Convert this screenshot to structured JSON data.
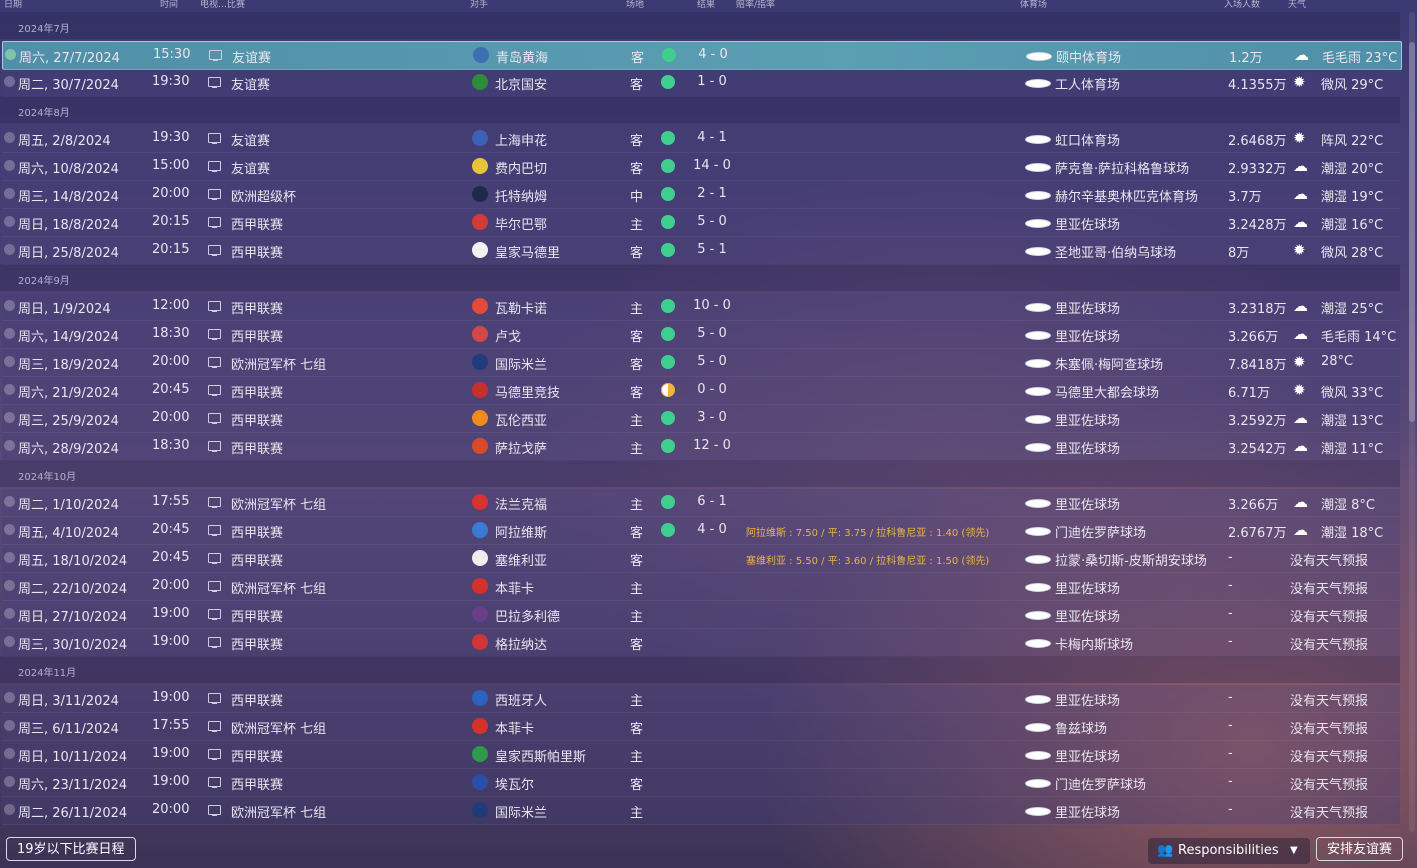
{
  "headers": {
    "date": "日期",
    "time": "时间",
    "tv": "电视…比赛",
    "opponent": "对手",
    "venue": "场地",
    "result": "结果",
    "odds": "赔率/指率",
    "stadium": "体育场",
    "attendance": "入场人数",
    "weather": "天气"
  },
  "colors": {
    "win": "#3ecf8e",
    "draw": "#f0b341"
  },
  "schedule": [
    {
      "type": "group",
      "label": "2024年7月"
    },
    {
      "type": "match",
      "selected": true,
      "date": "周六, 27/7/2024",
      "time": "15:30",
      "comp": "友谊赛",
      "opp": "青岛黄海",
      "logo": "#3f6fb3",
      "venue": "客",
      "result": "win",
      "score": "4 - 0",
      "odds": "",
      "stadium": "颐中体育场",
      "att": "1.2万",
      "wx_icon": "☁",
      "wx": "毛毛雨 23°C"
    },
    {
      "type": "match",
      "date": "周二, 30/7/2024",
      "time": "19:30",
      "comp": "友谊赛",
      "opp": "北京国安",
      "logo": "#2e8b3a",
      "venue": "客",
      "result": "win",
      "score": "1 - 0",
      "odds": "",
      "stadium": "工人体育场",
      "att": "4.1355万",
      "wx_icon": "✹",
      "wx": "微风 29°C"
    },
    {
      "type": "group",
      "label": "2024年8月"
    },
    {
      "type": "match",
      "date": "周五, 2/8/2024",
      "time": "19:30",
      "comp": "友谊赛",
      "opp": "上海申花",
      "logo": "#3b62b5",
      "venue": "客",
      "result": "win",
      "score": "4 - 1",
      "odds": "",
      "stadium": "虹口体育场",
      "att": "2.6468万",
      "wx_icon": "✹",
      "wx": "阵风 22°C"
    },
    {
      "type": "match",
      "date": "周六, 10/8/2024",
      "time": "15:00",
      "comp": "友谊赛",
      "opp": "费内巴切",
      "logo": "#e9c43a",
      "venue": "客",
      "result": "win",
      "score": "14 - 0",
      "odds": "",
      "stadium": "萨克鲁·萨拉科格鲁球场",
      "att": "2.9332万",
      "wx_icon": "☁",
      "wx": "潮湿 20°C"
    },
    {
      "type": "match",
      "date": "周三, 14/8/2024",
      "time": "20:00",
      "comp": "欧洲超级杯",
      "opp": "托特纳姆",
      "logo": "#1e2a4a",
      "venue": "中",
      "result": "win",
      "score": "2 - 1",
      "odds": "",
      "stadium": "赫尔辛基奥林匹克体育场",
      "att": "3.7万",
      "wx_icon": "☁",
      "wx": "潮湿 19°C"
    },
    {
      "type": "match",
      "date": "周日, 18/8/2024",
      "time": "20:15",
      "comp": "西甲联赛",
      "opp": "毕尔巴鄂",
      "logo": "#d33a3a",
      "venue": "主",
      "result": "win",
      "score": "5 - 0",
      "odds": "",
      "stadium": "里亚佐球场",
      "att": "3.2428万",
      "wx_icon": "☁",
      "wx": "潮湿 16°C"
    },
    {
      "type": "match",
      "date": "周日, 25/8/2024",
      "time": "20:15",
      "comp": "西甲联赛",
      "opp": "皇家马德里",
      "logo": "#f1f1f1",
      "venue": "客",
      "result": "win",
      "score": "5 - 1",
      "odds": "",
      "stadium": "圣地亚哥·伯纳乌球场",
      "att": "8万",
      "wx_icon": "✹",
      "wx": "微风 28°C"
    },
    {
      "type": "group",
      "label": "2024年9月"
    },
    {
      "type": "match",
      "date": "周日, 1/9/2024",
      "time": "12:00",
      "comp": "西甲联赛",
      "opp": "瓦勒卡诺",
      "logo": "#e34a3a",
      "venue": "主",
      "result": "win",
      "score": "10 - 0",
      "odds": "",
      "stadium": "里亚佐球场",
      "att": "3.2318万",
      "wx_icon": "☁",
      "wx": "潮湿 25°C"
    },
    {
      "type": "match",
      "date": "周六, 14/9/2024",
      "time": "18:30",
      "comp": "西甲联赛",
      "opp": "卢戈",
      "logo": "#d54848",
      "venue": "客",
      "result": "win",
      "score": "5 - 0",
      "odds": "",
      "stadium": "里亚佐球场",
      "att": "3.266万",
      "wx_icon": "☁",
      "wx": "毛毛雨 14°C"
    },
    {
      "type": "match",
      "date": "周三, 18/9/2024",
      "time": "20:00",
      "comp": "欧洲冠军杯 七组",
      "opp": "国际米兰",
      "logo": "#1f3b7a",
      "venue": "客",
      "result": "win",
      "score": "5 - 0",
      "odds": "",
      "stadium": "朱塞佩·梅阿查球场",
      "att": "7.8418万",
      "wx_icon": "✹",
      "wx": "28°C"
    },
    {
      "type": "match",
      "date": "周六, 21/9/2024",
      "time": "20:45",
      "comp": "西甲联赛",
      "opp": "马德里竞技",
      "logo": "#c8302c",
      "venue": "客",
      "result": "draw",
      "score": "0 - 0",
      "odds": "",
      "stadium": "马德里大都会球场",
      "att": "6.71万",
      "wx_icon": "✹",
      "wx": "微风 33°C"
    },
    {
      "type": "match",
      "date": "周三, 25/9/2024",
      "time": "20:00",
      "comp": "西甲联赛",
      "opp": "瓦伦西亚",
      "logo": "#f08a1c",
      "venue": "主",
      "result": "win",
      "score": "3 - 0",
      "odds": "",
      "stadium": "里亚佐球场",
      "att": "3.2592万",
      "wx_icon": "☁",
      "wx": "潮湿 13°C"
    },
    {
      "type": "match",
      "date": "周六, 28/9/2024",
      "time": "18:30",
      "comp": "西甲联赛",
      "opp": "萨拉戈萨",
      "logo": "#d84a2a",
      "venue": "主",
      "result": "win",
      "score": "12 - 0",
      "odds": "",
      "stadium": "里亚佐球场",
      "att": "3.2542万",
      "wx_icon": "☁",
      "wx": "潮湿 11°C"
    },
    {
      "type": "group",
      "label": "2024年10月"
    },
    {
      "type": "match",
      "date": "周二, 1/10/2024",
      "time": "17:55",
      "comp": "欧洲冠军杯 七组",
      "opp": "法兰克福",
      "logo": "#d8312f",
      "venue": "主",
      "result": "win",
      "score": "6 - 1",
      "odds": "",
      "stadium": "里亚佐球场",
      "att": "3.266万",
      "wx_icon": "☁",
      "wx": "潮湿 8°C"
    },
    {
      "type": "match",
      "date": "周五, 4/10/2024",
      "time": "20:45",
      "comp": "西甲联赛",
      "opp": "阿拉维斯",
      "logo": "#3a7bd5",
      "venue": "客",
      "result": "win",
      "score": "4 - 0",
      "odds": "阿拉维斯 : 7.50 / 平: 3.75 / 拉科鲁尼亚 : 1.40 (领先)",
      "stadium": "门迪佐罗萨球场",
      "att": "2.6767万",
      "wx_icon": "☁",
      "wx": "潮湿 18°C"
    },
    {
      "type": "match",
      "date": "周五, 18/10/2024",
      "time": "20:45",
      "comp": "西甲联赛",
      "opp": "塞维利亚",
      "logo": "#eee",
      "venue": "客",
      "result": "",
      "score": "",
      "odds": "塞维利亚 : 5.50 / 平: 3.60 / 拉科鲁尼亚 : 1.50 (领先)",
      "stadium": "拉蒙·桑切斯-皮斯胡安球场",
      "att": "-",
      "wx_icon": "",
      "wx": "没有天气预报"
    },
    {
      "type": "match",
      "date": "周二, 22/10/2024",
      "time": "20:00",
      "comp": "欧洲冠军杯 七组",
      "opp": "本菲卡",
      "logo": "#d6302b",
      "venue": "主",
      "result": "",
      "score": "",
      "odds": "",
      "stadium": "里亚佐球场",
      "att": "-",
      "wx_icon": "",
      "wx": "没有天气预报"
    },
    {
      "type": "match",
      "date": "周日, 27/10/2024",
      "time": "19:00",
      "comp": "西甲联赛",
      "opp": "巴拉多利德",
      "logo": "#6a3f8a",
      "venue": "主",
      "result": "",
      "score": "",
      "odds": "",
      "stadium": "里亚佐球场",
      "att": "-",
      "wx_icon": "",
      "wx": "没有天气预报"
    },
    {
      "type": "match",
      "date": "周三, 30/10/2024",
      "time": "19:00",
      "comp": "西甲联赛",
      "opp": "格拉纳达",
      "logo": "#d0353a",
      "venue": "客",
      "result": "",
      "score": "",
      "odds": "",
      "stadium": "卡梅内斯球场",
      "att": "-",
      "wx_icon": "",
      "wx": "没有天气预报"
    },
    {
      "type": "group",
      "label": "2024年11月"
    },
    {
      "type": "match",
      "date": "周日, 3/11/2024",
      "time": "19:00",
      "comp": "西甲联赛",
      "opp": "西班牙人",
      "logo": "#2b62c0",
      "venue": "主",
      "result": "",
      "score": "",
      "odds": "",
      "stadium": "里亚佐球场",
      "att": "-",
      "wx_icon": "",
      "wx": "没有天气预报"
    },
    {
      "type": "match",
      "date": "周三, 6/11/2024",
      "time": "17:55",
      "comp": "欧洲冠军杯 七组",
      "opp": "本菲卡",
      "logo": "#d6302b",
      "venue": "客",
      "result": "",
      "score": "",
      "odds": "",
      "stadium": "鲁兹球场",
      "att": "-",
      "wx_icon": "",
      "wx": "没有天气预报"
    },
    {
      "type": "match",
      "date": "周日, 10/11/2024",
      "time": "19:00",
      "comp": "西甲联赛",
      "opp": "皇家西斯帕里斯",
      "logo": "#2e9a4a",
      "venue": "主",
      "result": "",
      "score": "",
      "odds": "",
      "stadium": "里亚佐球场",
      "att": "-",
      "wx_icon": "",
      "wx": "没有天气预报"
    },
    {
      "type": "match",
      "date": "周六, 23/11/2024",
      "time": "19:00",
      "comp": "西甲联赛",
      "opp": "埃瓦尔",
      "logo": "#2b4fa8",
      "venue": "客",
      "result": "",
      "score": "",
      "odds": "",
      "stadium": "门迪佐罗萨球场",
      "att": "-",
      "wx_icon": "",
      "wx": "没有天气预报"
    },
    {
      "type": "match",
      "date": "周二, 26/11/2024",
      "time": "20:00",
      "comp": "欧洲冠军杯 七组",
      "opp": "国际米兰",
      "logo": "#1f3b7a",
      "venue": "主",
      "result": "",
      "score": "",
      "odds": "",
      "stadium": "里亚佐球场",
      "att": "-",
      "wx_icon": "",
      "wx": "没有天气预报"
    }
  ],
  "buttons": {
    "u19": "19岁以下比赛日程",
    "responsibilities": "Responsibilities",
    "arrange": "安排友谊赛"
  }
}
